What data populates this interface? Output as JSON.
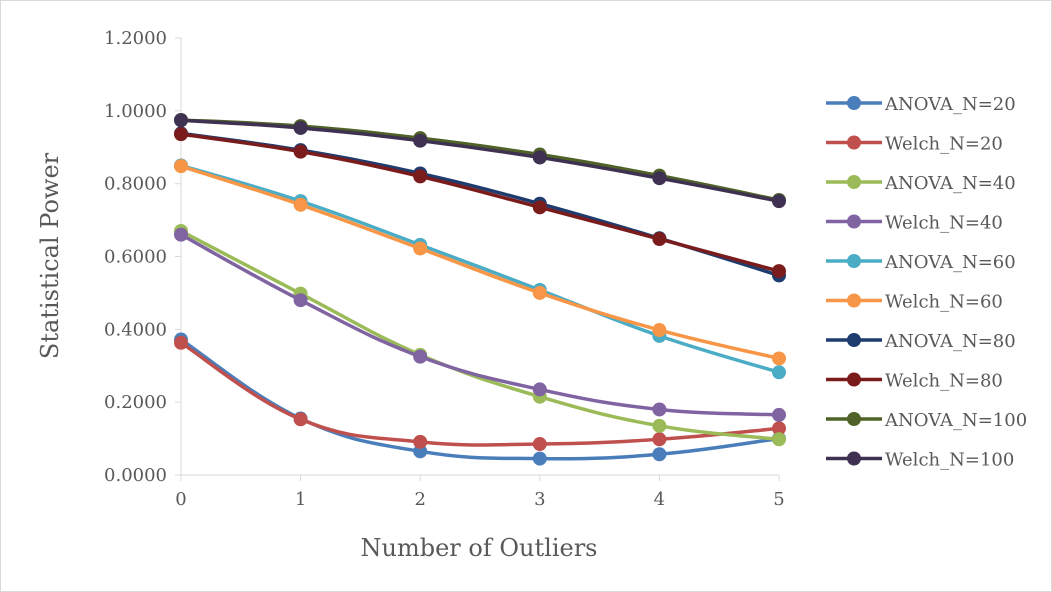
{
  "chart_data": {
    "type": "line",
    "title": "",
    "xlabel": "Number of Outliers",
    "ylabel": "Statistical Power",
    "x": [
      0,
      1,
      2,
      3,
      4,
      5
    ],
    "x_tick_labels": [
      "0",
      "1",
      "2",
      "3",
      "4",
      "5"
    ],
    "ylim": [
      0,
      1.2
    ],
    "y_tick_labels": [
      "0.0000",
      "0.2000",
      "0.4000",
      "0.6000",
      "0.8000",
      "1.0000",
      "1.2000"
    ],
    "grid": false,
    "legend_position": "right",
    "series": [
      {
        "name": "ANOVA_N=20",
        "color": "#4a7ebb",
        "values": [
          0.372,
          0.155,
          0.065,
          0.045,
          0.057,
          0.1
        ]
      },
      {
        "name": "Welch_N=20",
        "color": "#c0504d",
        "values": [
          0.363,
          0.153,
          0.091,
          0.085,
          0.098,
          0.128
        ]
      },
      {
        "name": "ANOVA_N=40",
        "color": "#9bbb59",
        "values": [
          0.67,
          0.498,
          0.33,
          0.215,
          0.135,
          0.098
        ]
      },
      {
        "name": "Welch_N=40",
        "color": "#8064a2",
        "values": [
          0.66,
          0.48,
          0.325,
          0.235,
          0.18,
          0.165
        ]
      },
      {
        "name": "ANOVA_N=60",
        "color": "#4bacc6",
        "values": [
          0.85,
          0.752,
          0.632,
          0.508,
          0.382,
          0.282
        ]
      },
      {
        "name": "Welch_N=60",
        "color": "#f79646",
        "values": [
          0.848,
          0.742,
          0.622,
          0.5,
          0.398,
          0.32
        ]
      },
      {
        "name": "ANOVA_N=80",
        "color": "#1f3c6e",
        "values": [
          0.938,
          0.892,
          0.828,
          0.745,
          0.65,
          0.548
        ]
      },
      {
        "name": "Welch_N=80",
        "color": "#7b1c1c",
        "values": [
          0.936,
          0.888,
          0.82,
          0.735,
          0.648,
          0.56
        ]
      },
      {
        "name": "ANOVA_N=100",
        "color": "#4f6228",
        "values": [
          0.975,
          0.958,
          0.925,
          0.88,
          0.822,
          0.755
        ]
      },
      {
        "name": "Welch_N=100",
        "color": "#3f3151",
        "values": [
          0.974,
          0.953,
          0.918,
          0.872,
          0.815,
          0.752
        ]
      }
    ]
  }
}
